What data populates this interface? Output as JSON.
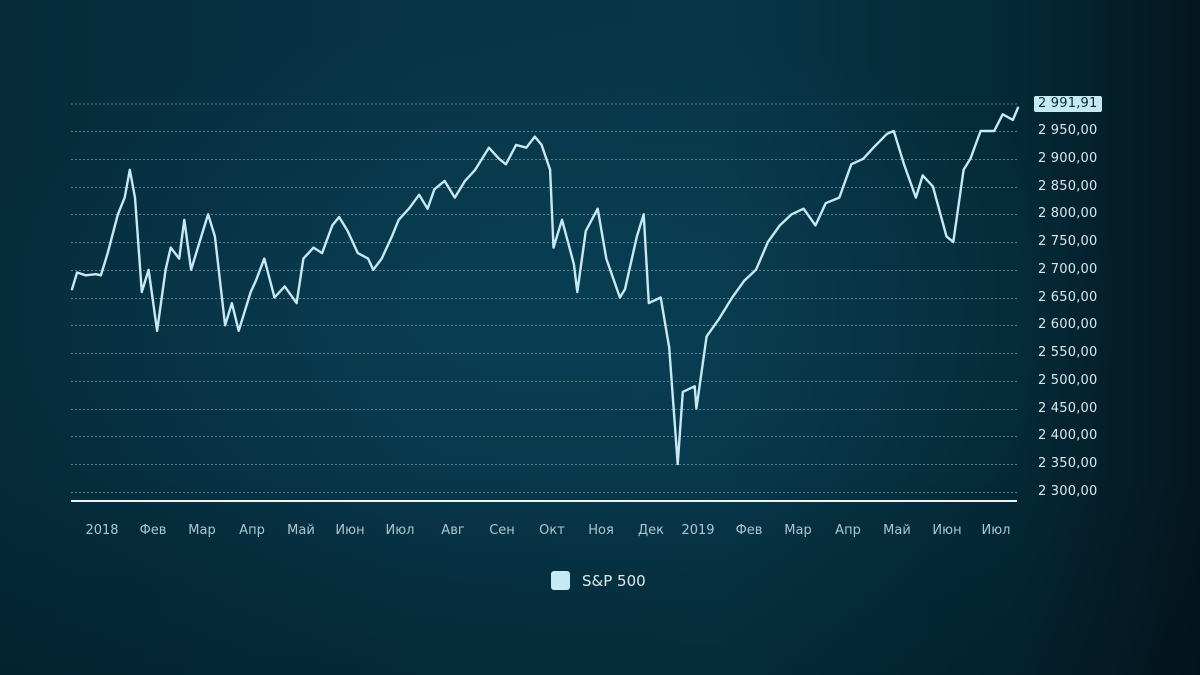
{
  "colors": {
    "background_center": "#073647",
    "background_dark": "#04161f",
    "line": "#c6e9f5",
    "grid": "#9fbfcc",
    "axis_text": "#d7e9f0",
    "x_text": "#a9c7d3",
    "last_value_bg": "#c6e9f5"
  },
  "legend": {
    "items": [
      {
        "label": "S&P 500",
        "color": "#c6e9f5"
      }
    ]
  },
  "y_axis": {
    "ticks": [
      "2 950,00",
      "2 900,00",
      "2 850,00",
      "2 800,00",
      "2 750,00",
      "2 700,00",
      "2 650,00",
      "2 600,00",
      "2 550,00",
      "2 500,00",
      "2 450,00",
      "2 400,00",
      "2 350,00",
      "2 300,00"
    ],
    "last_value": "2 991,91"
  },
  "x_axis": {
    "ticks": [
      "2018",
      "Фев",
      "Мар",
      "Апр",
      "Май",
      "Июн",
      "Июл",
      "Авг",
      "Сен",
      "Окт",
      "Ноя",
      "Дек",
      "2019",
      "Фев",
      "Мар",
      "Апр",
      "Май",
      "Июн",
      "Июл"
    ]
  },
  "chart_data": {
    "type": "line",
    "title": "",
    "xlabel": "",
    "ylabel": "",
    "ylim": [
      2282,
      3000
    ],
    "y_ticks": [
      2300,
      2350,
      2400,
      2450,
      2500,
      2550,
      2600,
      2650,
      2700,
      2750,
      2800,
      2850,
      2900,
      2950
    ],
    "grid": true,
    "legend_position": "bottom-center",
    "x_tick_labels": [
      "2018",
      "Фев",
      "Мар",
      "Апр",
      "Май",
      "Июн",
      "Июл",
      "Авг",
      "Сен",
      "Окт",
      "Ноя",
      "Дек",
      "2019",
      "Фев",
      "Мар",
      "Апр",
      "Май",
      "Июн",
      "Июл"
    ],
    "last_value": 2991.91,
    "series": [
      {
        "name": "S&P 500",
        "x": [
          "2018-01-02",
          "2018-01-05",
          "2018-01-10",
          "2018-01-16",
          "2018-01-19",
          "2018-01-23",
          "2018-01-26",
          "2018-01-29",
          "2018-02-02",
          "2018-02-05",
          "2018-02-08",
          "2018-02-12",
          "2018-02-16",
          "2018-02-21",
          "2018-02-26",
          "2018-03-01",
          "2018-03-06",
          "2018-03-09",
          "2018-03-13",
          "2018-03-19",
          "2018-03-23",
          "2018-03-27",
          "2018-04-02",
          "2018-04-06",
          "2018-04-10",
          "2018-04-17",
          "2018-04-20",
          "2018-04-25",
          "2018-05-01",
          "2018-05-07",
          "2018-05-14",
          "2018-05-18",
          "2018-05-24",
          "2018-05-29",
          "2018-06-04",
          "2018-06-08",
          "2018-06-13",
          "2018-06-19",
          "2018-06-25",
          "2018-06-28",
          "2018-07-03",
          "2018-07-09",
          "2018-07-13",
          "2018-07-19",
          "2018-07-25",
          "2018-07-30",
          "2018-08-03",
          "2018-08-09",
          "2018-08-15",
          "2018-08-21",
          "2018-08-27",
          "2018-09-04",
          "2018-09-10",
          "2018-09-14",
          "2018-09-20",
          "2018-09-26",
          "2018-10-01",
          "2018-10-05",
          "2018-10-10",
          "2018-10-12",
          "2018-10-17",
          "2018-10-24",
          "2018-10-26",
          "2018-10-31",
          "2018-11-07",
          "2018-11-12",
          "2018-11-20",
          "2018-11-23",
          "2018-11-30",
          "2018-12-04",
          "2018-12-07",
          "2018-12-14",
          "2018-12-19",
          "2018-12-24",
          "2018-12-27",
          "2019-01-03",
          "2019-01-04",
          "2019-01-10",
          "2019-01-17",
          "2019-01-25",
          "2019-02-01",
          "2019-02-08",
          "2019-02-15",
          "2019-02-22",
          "2019-03-01",
          "2019-03-08",
          "2019-03-15",
          "2019-03-21",
          "2019-03-29",
          "2019-04-05",
          "2019-04-12",
          "2019-04-18",
          "2019-04-26",
          "2019-04-30",
          "2019-05-06",
          "2019-05-13",
          "2019-05-17",
          "2019-05-23",
          "2019-05-31",
          "2019-06-04",
          "2019-06-10",
          "2019-06-14",
          "2019-06-20",
          "2019-06-28",
          "2019-07-03",
          "2019-07-09",
          "2019-07-12"
        ],
        "values": [
          2665,
          2695,
          2690,
          2692,
          2690,
          2730,
          2765,
          2800,
          2830,
          2880,
          2830,
          2660,
          2700,
          2590,
          2700,
          2740,
          2720,
          2790,
          2700,
          2760,
          2800,
          2760,
          2600,
          2640,
          2590,
          2660,
          2680,
          2720,
          2650,
          2670,
          2640,
          2720,
          2740,
          2730,
          2780,
          2795,
          2770,
          2730,
          2720,
          2700,
          2720,
          2760,
          2790,
          2810,
          2835,
          2810,
          2845,
          2860,
          2830,
          2860,
          2880,
          2920,
          2900,
          2890,
          2925,
          2920,
          2940,
          2925,
          2880,
          2740,
          2790,
          2710,
          2660,
          2770,
          2810,
          2720,
          2650,
          2665,
          2760,
          2800,
          2640,
          2650,
          2560,
          2350,
          2480,
          2490,
          2450,
          2580,
          2610,
          2650,
          2680,
          2700,
          2750,
          2780,
          2800,
          2810,
          2780,
          2820,
          2830,
          2890,
          2900,
          2920,
          2945,
          2950,
          2890,
          2830,
          2870,
          2850,
          2760,
          2750,
          2880,
          2900,
          2950,
          2950,
          2980,
          2970,
          2991.91
        ]
      }
    ]
  }
}
